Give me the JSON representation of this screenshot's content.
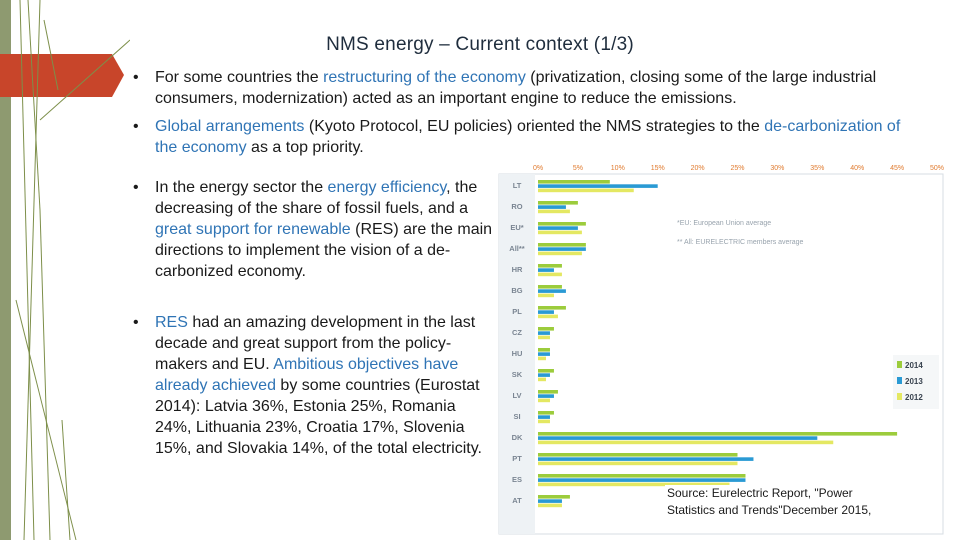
{
  "slide": {
    "title": "NMS energy – Current context  (1/3)",
    "bullet_char": "•",
    "b1": {
      "t1": "For some countries the ",
      "h1": "restructuring of the economy",
      "t2": " (privatization, closing some of the large industrial consumers, modernization) acted as an important engine to reduce the emissions."
    },
    "b2": {
      "h1": "Global arrangements",
      "t1": " (Kyoto Protocol, EU policies) oriented the NMS strategies to the ",
      "h2": "de-carbonization of the economy",
      "t2": " as a top priority."
    },
    "b3": {
      "t1": "In the energy sector the ",
      "h1": "energy efficiency",
      "t2": ", the decreasing of the share of fossil fuels, and a ",
      "h2": "great support for renewable",
      "t3": " (RES) are the main directions to implement the vision of a de-carbonized economy."
    },
    "b4": {
      "h1": "RES",
      "t1": " had an amazing development in the last decade and great support from the policy-makers and EU. ",
      "h2": "Ambitious objectives have already achieved",
      "t2": " by some countries (Eurostat 2014): Latvia 36%, Estonia 25%, Romania 24%, Lithuania 23%, Croatia 17%, Slovenia 15%, and Slovakia 14%, of the total electricity."
    },
    "source_line1": "Source: Eurelectric Report, \"Power",
    "source_line2": "Statistics and Trends\"December 2015,"
  },
  "colors": {
    "accent_bar": "#c8452a",
    "line_green": "#7d8f4a",
    "highlight_text": "#2f74b5",
    "series_2014": "#9ccc3c",
    "series_2013": "#2a9ad4",
    "series_2012": "#e4e862"
  },
  "chart_data": {
    "type": "bar",
    "orientation": "horizontal",
    "x_ticks": [
      "0%",
      "5%",
      "10%",
      "15%",
      "20%",
      "25%",
      "30%",
      "35%",
      "40%",
      "45%",
      "50%"
    ],
    "xlim": [
      0,
      50
    ],
    "categories": [
      "LT",
      "RO",
      "EU*",
      "All**",
      "HR",
      "BG",
      "PL",
      "CZ",
      "HU",
      "SK",
      "LV",
      "SI",
      "DK",
      "PT",
      "ES",
      "AT"
    ],
    "series": [
      {
        "name": "2014",
        "values": [
          9,
          5,
          6,
          6,
          3,
          3,
          3.5,
          2,
          1.5,
          2,
          2.5,
          2,
          45,
          25,
          26,
          4
        ]
      },
      {
        "name": "2013",
        "values": [
          15,
          3.5,
          5,
          6,
          2,
          3.5,
          2,
          1.5,
          1.5,
          1.5,
          2,
          1.5,
          35,
          27,
          26,
          3
        ]
      },
      {
        "name": "2012",
        "values": [
          12,
          4,
          5.5,
          5.5,
          3,
          2,
          2.5,
          1.5,
          1,
          1,
          1.5,
          1.5,
          37,
          25,
          24,
          3
        ]
      }
    ],
    "annotations": [
      "*EU: European Union average",
      "** All: EURELECTRIC members average"
    ],
    "legend": [
      "2014",
      "2013",
      "2012"
    ],
    "legend_position": "right",
    "grid": false
  }
}
